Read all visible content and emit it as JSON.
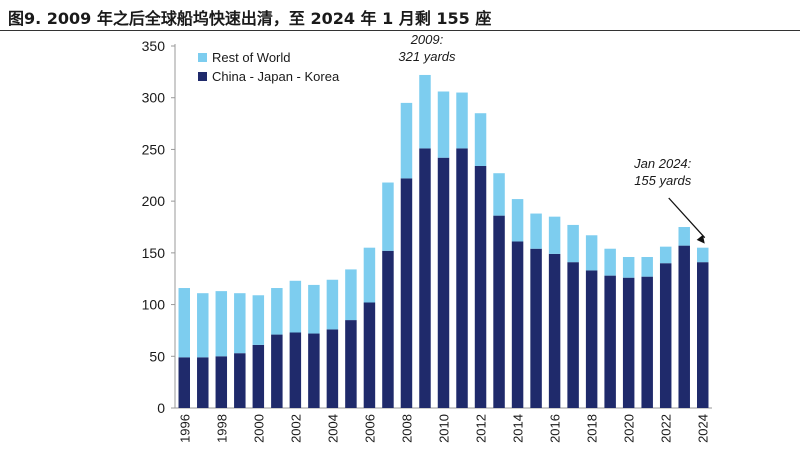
{
  "page": {
    "figure_title": "图9. 2009 年之后全球船坞快速出清，至 2024 年 1 月剩 155 座"
  },
  "colors": {
    "rest_of_world": "#7dcdef",
    "cjk": "#1f2a6b",
    "axis": "#999999",
    "text": "#1a1a1a"
  },
  "chart_data": {
    "type": "bar",
    "stacked": true,
    "title": "",
    "xlabel": "",
    "ylabel": "",
    "ylim": [
      0,
      350
    ],
    "yticks": [
      0,
      50,
      100,
      150,
      200,
      250,
      300,
      350
    ],
    "grid": false,
    "legend_position": "top-left",
    "categories": [
      "1996",
      "1997",
      "1998",
      "1999",
      "2000",
      "2001",
      "2002",
      "2003",
      "2004",
      "2005",
      "2006",
      "2007",
      "2008",
      "2009",
      "2010",
      "2011",
      "2012",
      "2013",
      "2014",
      "2015",
      "2016",
      "2017",
      "2018",
      "2019",
      "2020",
      "2021",
      "2022",
      "2023",
      "2024"
    ],
    "xticks": [
      "1996",
      "1998",
      "2000",
      "2002",
      "2004",
      "2006",
      "2008",
      "2010",
      "2012",
      "2014",
      "2016",
      "2018",
      "2020",
      "2022",
      "2024"
    ],
    "series": [
      {
        "name": "China - Japan - Korea",
        "color_key": "cjk",
        "values": [
          49,
          49,
          50,
          53,
          61,
          71,
          73,
          72,
          76,
          85,
          102,
          152,
          222,
          251,
          242,
          251,
          234,
          186,
          161,
          154,
          149,
          141,
          133,
          128,
          126,
          127,
          140,
          157,
          141
        ]
      },
      {
        "name": "Rest of World",
        "color_key": "rest_of_world",
        "values": [
          67,
          62,
          63,
          58,
          48,
          45,
          50,
          47,
          48,
          49,
          53,
          66,
          73,
          71,
          64,
          54,
          51,
          41,
          41,
          34,
          36,
          36,
          34,
          26,
          20,
          19,
          16,
          18,
          14
        ]
      }
    ],
    "legend": [
      "Rest of World",
      "China - Japan - Korea"
    ],
    "annotations": [
      {
        "lines": [
          "2009:",
          "321 yards"
        ],
        "category": "2009",
        "arrow": false
      },
      {
        "lines": [
          "Jan 2024:",
          "155 yards"
        ],
        "category": "2024",
        "arrow": true
      }
    ]
  }
}
